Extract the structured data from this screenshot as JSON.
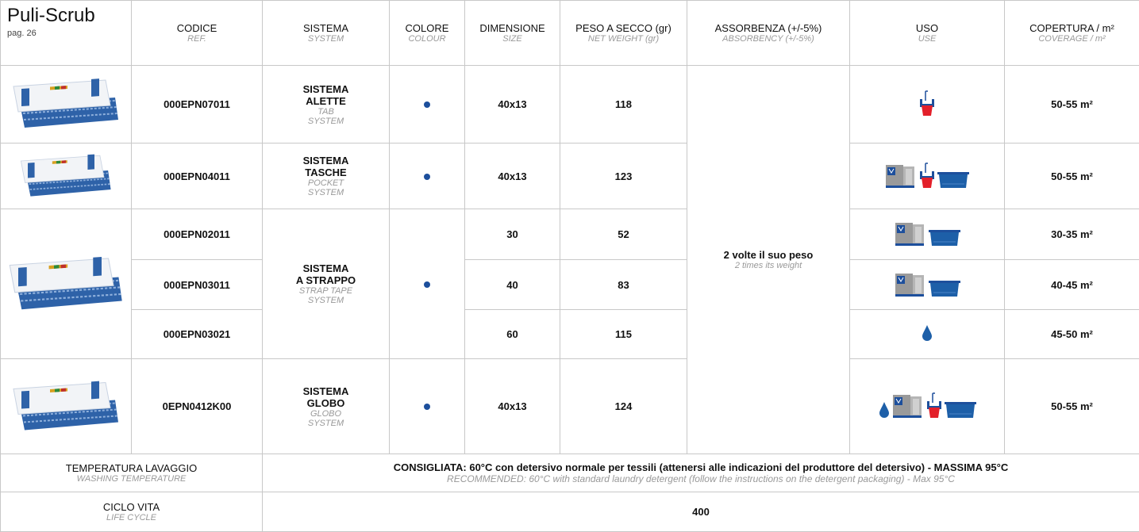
{
  "header": {
    "title": "Puli-Scrub",
    "page": "pag. 26",
    "columns": [
      {
        "it": "CODICE",
        "en": "REF."
      },
      {
        "it": "SISTEMA",
        "en": "SYSTEM"
      },
      {
        "it": "COLORE",
        "en": "COLOUR"
      },
      {
        "it": "DIMENSIONE",
        "en": "SIZE"
      },
      {
        "it": "PESO A SECCO (gr)",
        "en": "NET WEIGHT (gr)"
      },
      {
        "it": "ASSORBENZA (+/-5%)",
        "en": "ABSORBENCY (+/-5%)"
      },
      {
        "it": "USO",
        "en": "USE"
      },
      {
        "it": "COPERTURA / m²",
        "en": "COVERAGE / m²"
      }
    ]
  },
  "groups": [
    {
      "system": [
        "SISTEMA",
        "ALETTE"
      ],
      "system_en": [
        "TAB",
        "SYSTEM"
      ],
      "items": [
        {
          "code": "000EPN07011",
          "size": "40x13",
          "weight": 118,
          "coverage": "50-55 m²"
        }
      ]
    },
    {
      "system": [
        "SISTEMA",
        "TASCHE"
      ],
      "system_en": [
        "POCKET",
        "SYSTEM"
      ],
      "items": [
        {
          "code": "000EPN04011",
          "size": "40x13",
          "weight": 123,
          "coverage": "50-55 m²"
        }
      ]
    },
    {
      "system": [
        "SISTEMA",
        "A STRAPPO"
      ],
      "system_en": [
        "STRAP TAPE",
        "SYSTEM"
      ],
      "items": [
        {
          "code": "000EPN02011",
          "size": "30",
          "weight": 52,
          "coverage": "30-35 m²"
        },
        {
          "code": "000EPN03011",
          "size": "40",
          "weight": 83,
          "coverage": "40-45 m²"
        },
        {
          "code": "000EPN03021",
          "size": "60",
          "weight": 115,
          "coverage": "45-50 m²"
        }
      ]
    },
    {
      "system": [
        "SISTEMA",
        "GLOBO"
      ],
      "system_en": [
        "GLOBO",
        "SYSTEM"
      ],
      "items": [
        {
          "code": "0EPN0412K00",
          "size": "40x13",
          "weight": 124,
          "coverage": "50-55 m²"
        }
      ]
    }
  ],
  "absorbency": {
    "it": "2 volte il suo peso",
    "en": "2 times its weight"
  },
  "footer": {
    "temperature": {
      "label": "TEMPERATURA LAVAGGIO",
      "label_en": "WASHING TEMPERATURE",
      "text": "CONSIGLIATA: 60°C con detersivo normale per tessili (attenersi alle indicazioni del produttore del detersivo) - MASSIMA 95°C",
      "text_en": "RECOMMENDED: 60°C with standard laundry detergent (follow the instructions on the detergent packaging) -  Max 95°C"
    },
    "life_cycle": {
      "label": "CICLO VITA",
      "label_en": "LIFE CYCLE",
      "value": 400
    }
  }
}
